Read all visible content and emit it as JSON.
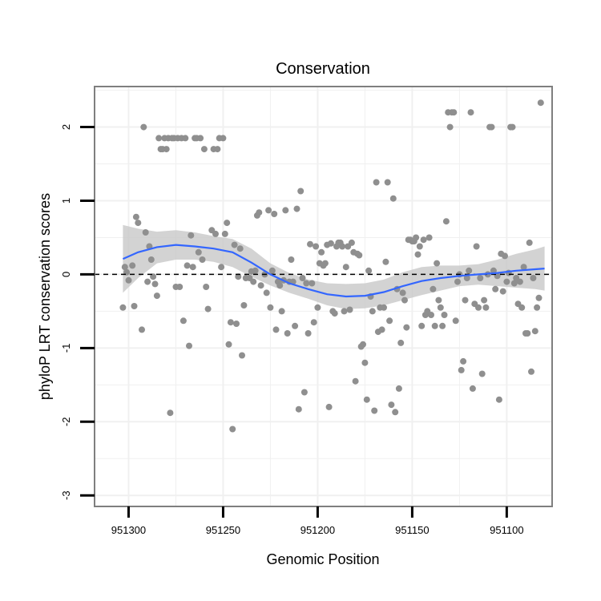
{
  "chart_data": {
    "type": "scatter",
    "title": "Conservation",
    "xlabel": "Genomic Position",
    "ylabel": "phyloP LRT conservation scores",
    "x_reversed": true,
    "xlim": [
      951318,
      951076
    ],
    "ylim": [
      -3.15,
      2.55
    ],
    "x_ticks": [
      951300,
      951250,
      951200,
      951150,
      951100
    ],
    "x_tick_labels": [
      "951300",
      "951250",
      "951200",
      "951150",
      "951100"
    ],
    "y_ticks": [
      -3,
      -2,
      -1,
      0,
      1,
      2
    ],
    "y_tick_labels": [
      "-3",
      "-2",
      "-1",
      "0",
      "1",
      "2"
    ],
    "grid": true,
    "legend": "none",
    "reference_line": {
      "y": 0,
      "style": "dashed",
      "color": "#000000"
    },
    "colors": {
      "points": "#8f8f8f",
      "smooth_line": "#3366ff",
      "confidence_band": "#c8c8c8",
      "panel_border": "#7f7f7f",
      "grid": "#f0f0f0"
    },
    "smooth": {
      "x": [
        951303,
        951295,
        951285,
        951275,
        951265,
        951255,
        951245,
        951235,
        951225,
        951215,
        951205,
        951195,
        951185,
        951175,
        951165,
        951155,
        951145,
        951135,
        951125,
        951115,
        951105,
        951095,
        951085,
        951080
      ],
      "y": [
        0.21,
        0.3,
        0.37,
        0.4,
        0.38,
        0.35,
        0.3,
        0.16,
        0.0,
        -0.12,
        -0.2,
        -0.27,
        -0.3,
        -0.29,
        -0.24,
        -0.16,
        -0.09,
        -0.05,
        -0.02,
        0.0,
        0.02,
        0.05,
        0.07,
        0.08
      ],
      "lower": [
        -0.25,
        -0.05,
        0.15,
        0.2,
        0.2,
        0.17,
        0.1,
        -0.03,
        -0.15,
        -0.25,
        -0.33,
        -0.42,
        -0.47,
        -0.46,
        -0.42,
        -0.35,
        -0.28,
        -0.22,
        -0.16,
        -0.14,
        -0.16,
        -0.18,
        -0.2,
        -0.22
      ],
      "upper": [
        0.67,
        0.62,
        0.58,
        0.6,
        0.57,
        0.52,
        0.48,
        0.35,
        0.15,
        0.02,
        -0.07,
        -0.12,
        -0.13,
        -0.12,
        -0.07,
        0.03,
        0.1,
        0.12,
        0.12,
        0.14,
        0.2,
        0.28,
        0.34,
        0.38
      ]
    },
    "points": [
      [
        951303,
        -0.45
      ],
      [
        951302,
        0.1
      ],
      [
        951301,
        0.03
      ],
      [
        951300,
        -0.08
      ],
      [
        951298,
        0.12
      ],
      [
        951297,
        -0.43
      ],
      [
        951296,
        0.78
      ],
      [
        951295,
        0.7
      ],
      [
        951293,
        -0.75
      ],
      [
        951292,
        2.0
      ],
      [
        951291,
        0.57
      ],
      [
        951290,
        -0.1
      ],
      [
        951289,
        0.38
      ],
      [
        951288,
        0.2
      ],
      [
        951287,
        -0.03
      ],
      [
        951286,
        -0.13
      ],
      [
        951285,
        -0.29
      ],
      [
        951284,
        1.85
      ],
      [
        951283,
        1.7
      ],
      [
        951282,
        1.7
      ],
      [
        951281,
        1.85
      ],
      [
        951280,
        1.7
      ],
      [
        951279,
        1.85
      ],
      [
        951278,
        -1.88
      ],
      [
        951277,
        1.85
      ],
      [
        951276,
        1.85
      ],
      [
        951275,
        -0.17
      ],
      [
        951274,
        1.85
      ],
      [
        951273,
        -0.17
      ],
      [
        951272,
        1.85
      ],
      [
        951271,
        -0.63
      ],
      [
        951270,
        1.85
      ],
      [
        951269,
        0.12
      ],
      [
        951268,
        -0.97
      ],
      [
        951267,
        0.53
      ],
      [
        951266,
        0.1
      ],
      [
        951265,
        1.85
      ],
      [
        951264,
        1.85
      ],
      [
        951263,
        0.3
      ],
      [
        951262,
        1.85
      ],
      [
        951261,
        0.2
      ],
      [
        951260,
        1.7
      ],
      [
        951259,
        -0.17
      ],
      [
        951258,
        -0.47
      ],
      [
        951256,
        0.6
      ],
      [
        951255,
        1.7
      ],
      [
        951254,
        0.55
      ],
      [
        951253,
        1.7
      ],
      [
        951252,
        1.85
      ],
      [
        951251,
        0.1
      ],
      [
        951250,
        1.85
      ],
      [
        951249,
        0.55
      ],
      [
        951248,
        0.7
      ],
      [
        951247,
        -0.95
      ],
      [
        951246,
        -0.65
      ],
      [
        951245,
        -2.1
      ],
      [
        951244,
        0.4
      ],
      [
        951243,
        -0.67
      ],
      [
        951242,
        -0.03
      ],
      [
        951241,
        0.35
      ],
      [
        951240,
        -1.1
      ],
      [
        951239,
        -0.42
      ],
      [
        951238,
        -0.05
      ],
      [
        951236,
        -0.05
      ],
      [
        951235,
        0.04
      ],
      [
        951234,
        -0.1
      ],
      [
        951233,
        0.05
      ],
      [
        951232,
        0.8
      ],
      [
        951231,
        0.84
      ],
      [
        951230,
        -0.15
      ],
      [
        951228,
        0.0
      ],
      [
        951227,
        -0.25
      ],
      [
        951226,
        0.87
      ],
      [
        951225,
        -0.45
      ],
      [
        951224,
        0.05
      ],
      [
        951223,
        0.82
      ],
      [
        951222,
        -0.75
      ],
      [
        951221,
        -0.1
      ],
      [
        951220,
        -0.15
      ],
      [
        951219,
        -0.5
      ],
      [
        951218,
        -0.08
      ],
      [
        951217,
        0.87
      ],
      [
        951216,
        -0.8
      ],
      [
        951215,
        -0.1
      ],
      [
        951214,
        0.2
      ],
      [
        951213,
        -0.1
      ],
      [
        951212,
        -0.7
      ],
      [
        951211,
        0.89
      ],
      [
        951210,
        -1.83
      ],
      [
        951209,
        1.13
      ],
      [
        951208,
        -0.05
      ],
      [
        951207,
        -1.6
      ],
      [
        951206,
        -0.12
      ],
      [
        951205,
        -0.8
      ],
      [
        951204,
        0.41
      ],
      [
        951203,
        -0.12
      ],
      [
        951202,
        -0.65
      ],
      [
        951201,
        0.38
      ],
      [
        951200,
        -0.45
      ],
      [
        951199,
        0.15
      ],
      [
        951198,
        0.3
      ],
      [
        951197,
        0.12
      ],
      [
        951196,
        0.15
      ],
      [
        951195,
        0.4
      ],
      [
        951194,
        -1.8
      ],
      [
        951193,
        0.42
      ],
      [
        951192,
        -0.5
      ],
      [
        951191,
        -0.53
      ],
      [
        951190,
        0.38
      ],
      [
        951189,
        0.43
      ],
      [
        951188,
        0.43
      ],
      [
        951187,
        0.38
      ],
      [
        951186,
        -0.5
      ],
      [
        951185,
        0.1
      ],
      [
        951184,
        0.38
      ],
      [
        951183,
        -0.48
      ],
      [
        951182,
        0.43
      ],
      [
        951181,
        0.3
      ],
      [
        951180,
        -1.45
      ],
      [
        951179,
        0.28
      ],
      [
        951178,
        0.26
      ],
      [
        951177,
        -0.98
      ],
      [
        951176,
        -0.95
      ],
      [
        951175,
        -1.2
      ],
      [
        951174,
        -1.7
      ],
      [
        951173,
        0.05
      ],
      [
        951172,
        -0.3
      ],
      [
        951171,
        -0.5
      ],
      [
        951170,
        -1.85
      ],
      [
        951169,
        1.25
      ],
      [
        951168,
        -0.78
      ],
      [
        951167,
        -0.45
      ],
      [
        951166,
        -0.75
      ],
      [
        951165,
        -0.45
      ],
      [
        951164,
        0.17
      ],
      [
        951163,
        1.25
      ],
      [
        951162,
        -0.63
      ],
      [
        951161,
        -1.77
      ],
      [
        951160,
        1.03
      ],
      [
        951159,
        -1.87
      ],
      [
        951158,
        -0.2
      ],
      [
        951157,
        -1.55
      ],
      [
        951156,
        -0.93
      ],
      [
        951155,
        -0.25
      ],
      [
        951154,
        -0.35
      ],
      [
        951153,
        -0.72
      ],
      [
        951152,
        0.47
      ],
      [
        951151,
        0.47
      ],
      [
        951150,
        0.45
      ],
      [
        951149,
        0.45
      ],
      [
        951148,
        0.5
      ],
      [
        951147,
        0.27
      ],
      [
        951146,
        0.38
      ],
      [
        951145,
        -0.7
      ],
      [
        951144,
        0.47
      ],
      [
        951143,
        -0.55
      ],
      [
        951142,
        -0.5
      ],
      [
        951141,
        0.5
      ],
      [
        951140,
        -0.55
      ],
      [
        951139,
        -0.2
      ],
      [
        951138,
        -0.7
      ],
      [
        951137,
        0.15
      ],
      [
        951136,
        -0.35
      ],
      [
        951135,
        -0.45
      ],
      [
        951134,
        -0.7
      ],
      [
        951133,
        -0.55
      ],
      [
        951132,
        0.72
      ],
      [
        951131,
        2.2
      ],
      [
        951130,
        2.0
      ],
      [
        951129,
        2.2
      ],
      [
        951128,
        2.2
      ],
      [
        951127,
        -0.63
      ],
      [
        951126,
        -0.1
      ],
      [
        951125,
        0.0
      ],
      [
        951124,
        -1.3
      ],
      [
        951123,
        -1.18
      ],
      [
        951122,
        -0.35
      ],
      [
        951121,
        -0.05
      ],
      [
        951120,
        0.05
      ],
      [
        951119,
        2.2
      ],
      [
        951118,
        -1.55
      ],
      [
        951117,
        -0.4
      ],
      [
        951116,
        0.38
      ],
      [
        951115,
        -0.45
      ],
      [
        951114,
        -0.05
      ],
      [
        951113,
        -1.35
      ],
      [
        951112,
        -0.35
      ],
      [
        951111,
        -0.45
      ],
      [
        951110,
        0.0
      ],
      [
        951109,
        2.0
      ],
      [
        951108,
        2.0
      ],
      [
        951107,
        0.05
      ],
      [
        951106,
        -0.2
      ],
      [
        951105,
        -0.02
      ],
      [
        951104,
        -1.7
      ],
      [
        951103,
        0.28
      ],
      [
        951102,
        -0.23
      ],
      [
        951101,
        0.25
      ],
      [
        951100,
        -0.1
      ],
      [
        951099,
        0.02
      ],
      [
        951098,
        2.0
      ],
      [
        951097,
        2.0
      ],
      [
        951096,
        -0.12
      ],
      [
        951095,
        -0.05
      ],
      [
        951094,
        -0.4
      ],
      [
        951093,
        -0.1
      ],
      [
        951092,
        -0.45
      ],
      [
        951091,
        0.1
      ],
      [
        951090,
        -0.8
      ],
      [
        951089,
        -0.8
      ],
      [
        951088,
        0.43
      ],
      [
        951087,
        -1.32
      ],
      [
        951086,
        -0.05
      ],
      [
        951085,
        -0.77
      ],
      [
        951084,
        -0.45
      ],
      [
        951083,
        -0.32
      ],
      [
        951082,
        2.33
      ]
    ]
  }
}
